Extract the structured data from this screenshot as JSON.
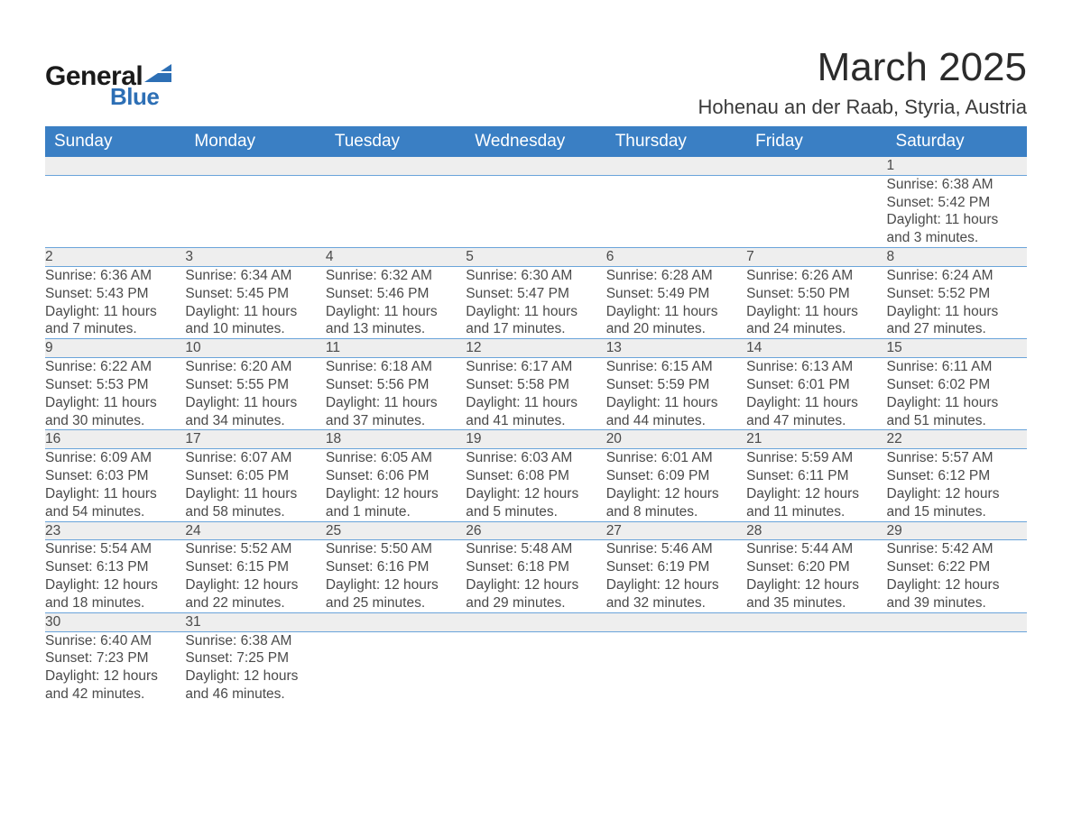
{
  "brand": {
    "text_general": "General",
    "text_blue": "Blue",
    "mark_color": "#2d6fb5"
  },
  "title": "March 2025",
  "location": "Hohenau an der Raab, Styria, Austria",
  "colors": {
    "header_bg": "#3a7fc4",
    "header_text": "#ffffff",
    "daynum_bg": "#eeeeee",
    "row_border": "#4f90cf",
    "body_text": "#4a4a4a"
  },
  "weekdays": [
    "Sunday",
    "Monday",
    "Tuesday",
    "Wednesday",
    "Thursday",
    "Friday",
    "Saturday"
  ],
  "weeks": [
    [
      null,
      null,
      null,
      null,
      null,
      null,
      {
        "n": "1",
        "sr": "Sunrise: 6:38 AM",
        "ss": "Sunset: 5:42 PM",
        "dl1": "Daylight: 11 hours",
        "dl2": "and 3 minutes."
      }
    ],
    [
      {
        "n": "2",
        "sr": "Sunrise: 6:36 AM",
        "ss": "Sunset: 5:43 PM",
        "dl1": "Daylight: 11 hours",
        "dl2": "and 7 minutes."
      },
      {
        "n": "3",
        "sr": "Sunrise: 6:34 AM",
        "ss": "Sunset: 5:45 PM",
        "dl1": "Daylight: 11 hours",
        "dl2": "and 10 minutes."
      },
      {
        "n": "4",
        "sr": "Sunrise: 6:32 AM",
        "ss": "Sunset: 5:46 PM",
        "dl1": "Daylight: 11 hours",
        "dl2": "and 13 minutes."
      },
      {
        "n": "5",
        "sr": "Sunrise: 6:30 AM",
        "ss": "Sunset: 5:47 PM",
        "dl1": "Daylight: 11 hours",
        "dl2": "and 17 minutes."
      },
      {
        "n": "6",
        "sr": "Sunrise: 6:28 AM",
        "ss": "Sunset: 5:49 PM",
        "dl1": "Daylight: 11 hours",
        "dl2": "and 20 minutes."
      },
      {
        "n": "7",
        "sr": "Sunrise: 6:26 AM",
        "ss": "Sunset: 5:50 PM",
        "dl1": "Daylight: 11 hours",
        "dl2": "and 24 minutes."
      },
      {
        "n": "8",
        "sr": "Sunrise: 6:24 AM",
        "ss": "Sunset: 5:52 PM",
        "dl1": "Daylight: 11 hours",
        "dl2": "and 27 minutes."
      }
    ],
    [
      {
        "n": "9",
        "sr": "Sunrise: 6:22 AM",
        "ss": "Sunset: 5:53 PM",
        "dl1": "Daylight: 11 hours",
        "dl2": "and 30 minutes."
      },
      {
        "n": "10",
        "sr": "Sunrise: 6:20 AM",
        "ss": "Sunset: 5:55 PM",
        "dl1": "Daylight: 11 hours",
        "dl2": "and 34 minutes."
      },
      {
        "n": "11",
        "sr": "Sunrise: 6:18 AM",
        "ss": "Sunset: 5:56 PM",
        "dl1": "Daylight: 11 hours",
        "dl2": "and 37 minutes."
      },
      {
        "n": "12",
        "sr": "Sunrise: 6:17 AM",
        "ss": "Sunset: 5:58 PM",
        "dl1": "Daylight: 11 hours",
        "dl2": "and 41 minutes."
      },
      {
        "n": "13",
        "sr": "Sunrise: 6:15 AM",
        "ss": "Sunset: 5:59 PM",
        "dl1": "Daylight: 11 hours",
        "dl2": "and 44 minutes."
      },
      {
        "n": "14",
        "sr": "Sunrise: 6:13 AM",
        "ss": "Sunset: 6:01 PM",
        "dl1": "Daylight: 11 hours",
        "dl2": "and 47 minutes."
      },
      {
        "n": "15",
        "sr": "Sunrise: 6:11 AM",
        "ss": "Sunset: 6:02 PM",
        "dl1": "Daylight: 11 hours",
        "dl2": "and 51 minutes."
      }
    ],
    [
      {
        "n": "16",
        "sr": "Sunrise: 6:09 AM",
        "ss": "Sunset: 6:03 PM",
        "dl1": "Daylight: 11 hours",
        "dl2": "and 54 minutes."
      },
      {
        "n": "17",
        "sr": "Sunrise: 6:07 AM",
        "ss": "Sunset: 6:05 PM",
        "dl1": "Daylight: 11 hours",
        "dl2": "and 58 minutes."
      },
      {
        "n": "18",
        "sr": "Sunrise: 6:05 AM",
        "ss": "Sunset: 6:06 PM",
        "dl1": "Daylight: 12 hours",
        "dl2": "and 1 minute."
      },
      {
        "n": "19",
        "sr": "Sunrise: 6:03 AM",
        "ss": "Sunset: 6:08 PM",
        "dl1": "Daylight: 12 hours",
        "dl2": "and 5 minutes."
      },
      {
        "n": "20",
        "sr": "Sunrise: 6:01 AM",
        "ss": "Sunset: 6:09 PM",
        "dl1": "Daylight: 12 hours",
        "dl2": "and 8 minutes."
      },
      {
        "n": "21",
        "sr": "Sunrise: 5:59 AM",
        "ss": "Sunset: 6:11 PM",
        "dl1": "Daylight: 12 hours",
        "dl2": "and 11 minutes."
      },
      {
        "n": "22",
        "sr": "Sunrise: 5:57 AM",
        "ss": "Sunset: 6:12 PM",
        "dl1": "Daylight: 12 hours",
        "dl2": "and 15 minutes."
      }
    ],
    [
      {
        "n": "23",
        "sr": "Sunrise: 5:54 AM",
        "ss": "Sunset: 6:13 PM",
        "dl1": "Daylight: 12 hours",
        "dl2": "and 18 minutes."
      },
      {
        "n": "24",
        "sr": "Sunrise: 5:52 AM",
        "ss": "Sunset: 6:15 PM",
        "dl1": "Daylight: 12 hours",
        "dl2": "and 22 minutes."
      },
      {
        "n": "25",
        "sr": "Sunrise: 5:50 AM",
        "ss": "Sunset: 6:16 PM",
        "dl1": "Daylight: 12 hours",
        "dl2": "and 25 minutes."
      },
      {
        "n": "26",
        "sr": "Sunrise: 5:48 AM",
        "ss": "Sunset: 6:18 PM",
        "dl1": "Daylight: 12 hours",
        "dl2": "and 29 minutes."
      },
      {
        "n": "27",
        "sr": "Sunrise: 5:46 AM",
        "ss": "Sunset: 6:19 PM",
        "dl1": "Daylight: 12 hours",
        "dl2": "and 32 minutes."
      },
      {
        "n": "28",
        "sr": "Sunrise: 5:44 AM",
        "ss": "Sunset: 6:20 PM",
        "dl1": "Daylight: 12 hours",
        "dl2": "and 35 minutes."
      },
      {
        "n": "29",
        "sr": "Sunrise: 5:42 AM",
        "ss": "Sunset: 6:22 PM",
        "dl1": "Daylight: 12 hours",
        "dl2": "and 39 minutes."
      }
    ],
    [
      {
        "n": "30",
        "sr": "Sunrise: 6:40 AM",
        "ss": "Sunset: 7:23 PM",
        "dl1": "Daylight: 12 hours",
        "dl2": "and 42 minutes."
      },
      {
        "n": "31",
        "sr": "Sunrise: 6:38 AM",
        "ss": "Sunset: 7:25 PM",
        "dl1": "Daylight: 12 hours",
        "dl2": "and 46 minutes."
      },
      null,
      null,
      null,
      null,
      null
    ]
  ]
}
